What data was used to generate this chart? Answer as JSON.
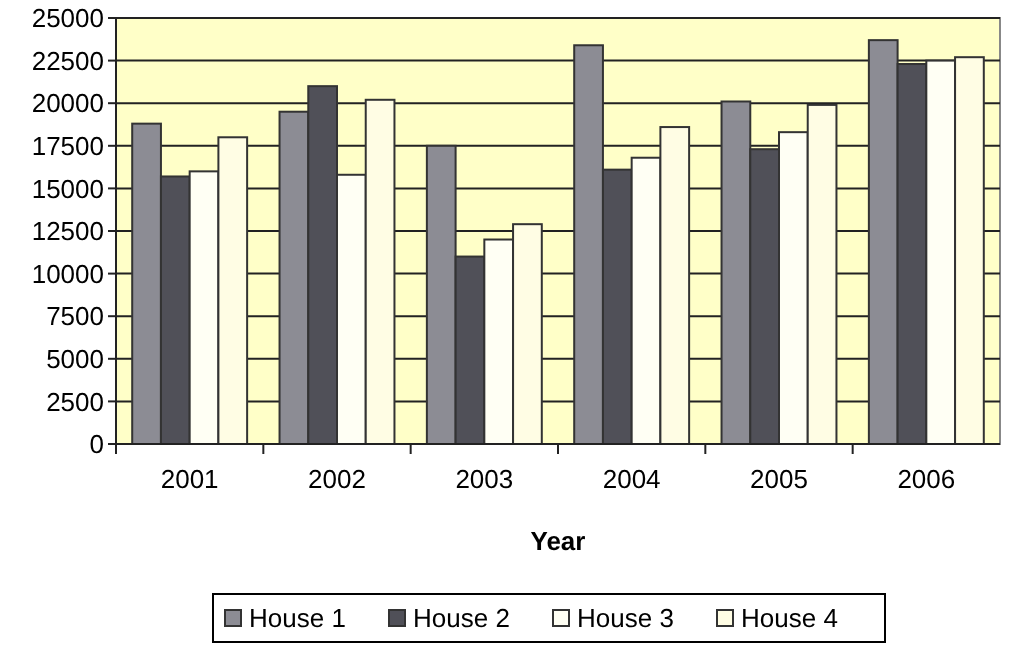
{
  "chart_data": {
    "type": "bar",
    "xlabel": "Year",
    "categories": [
      "2001",
      "2002",
      "2003",
      "2004",
      "2005",
      "2006"
    ],
    "series": [
      {
        "name": "House 1",
        "color": "#8c8c94",
        "values": [
          18800,
          19500,
          17500,
          23400,
          20100,
          23700
        ]
      },
      {
        "name": "House 2",
        "color": "#505058",
        "values": [
          15700,
          21000,
          11000,
          16100,
          17300,
          22300
        ]
      },
      {
        "name": "House 3",
        "color": "#fffff4",
        "values": [
          16000,
          15800,
          12000,
          16800,
          18300,
          22500
        ]
      },
      {
        "name": "House 4",
        "color": "#fffde4",
        "values": [
          18000,
          20200,
          12900,
          18600,
          19900,
          22700
        ]
      }
    ],
    "ylim": [
      0,
      25000
    ],
    "yticks": [
      0,
      2500,
      5000,
      7500,
      10000,
      12500,
      15000,
      17500,
      20000,
      22500,
      25000
    ],
    "grid": "y",
    "legend": "bottom"
  }
}
